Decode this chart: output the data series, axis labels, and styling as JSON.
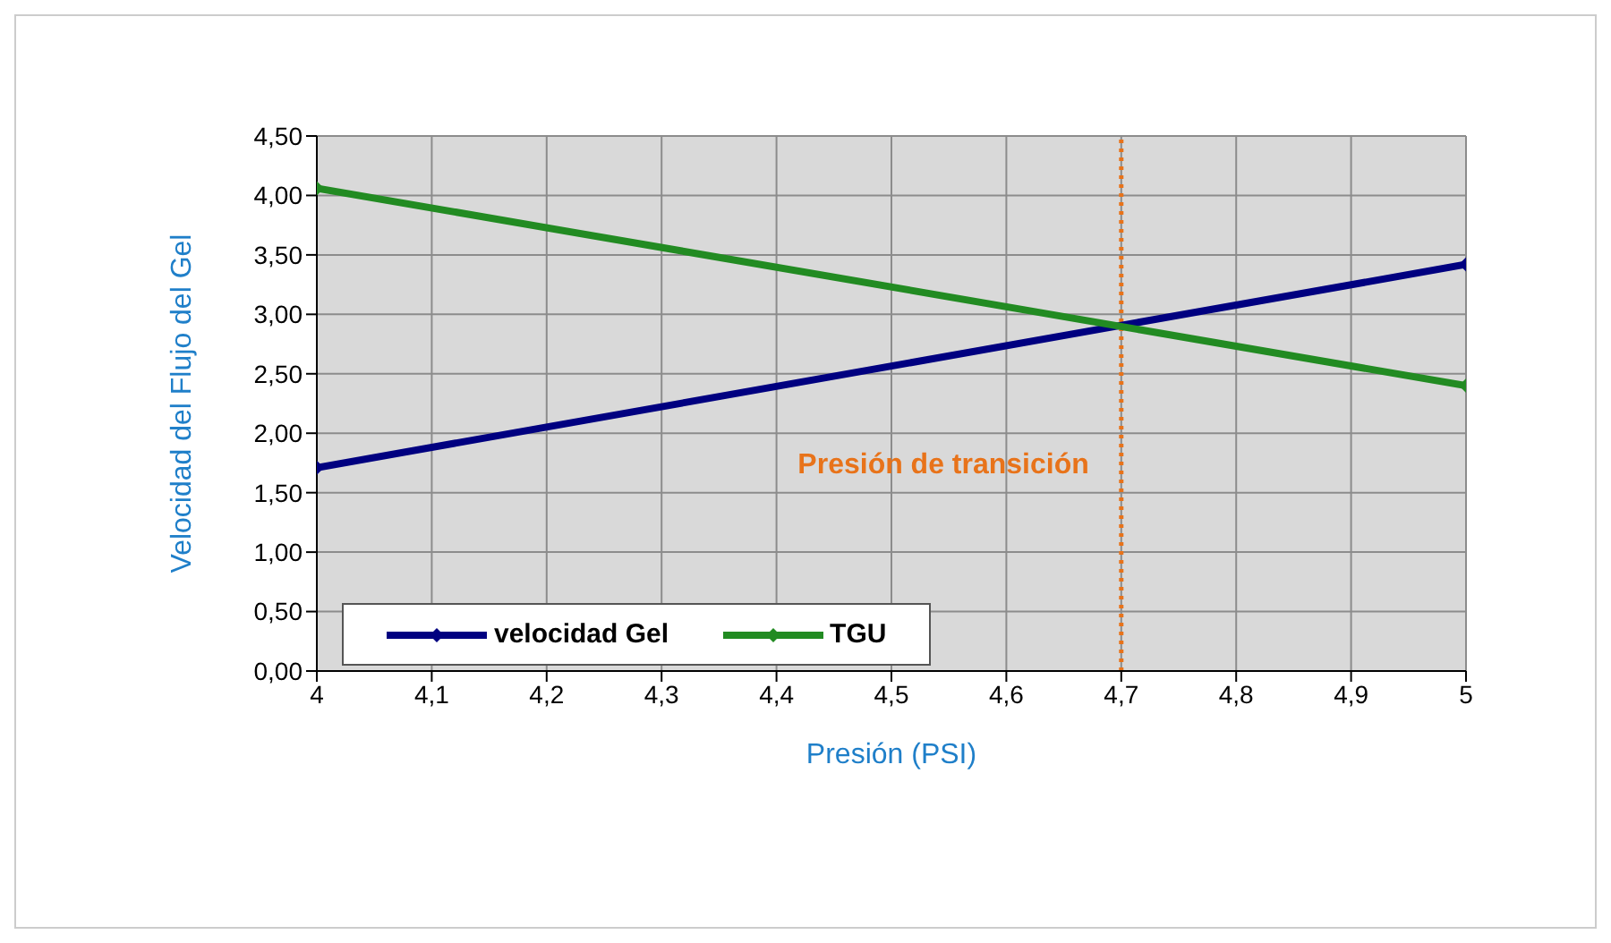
{
  "chart_data": {
    "type": "line",
    "xlabel": "Presión  (PSI)",
    "ylabel": "Velocidad  del  Flujo  del  Gel",
    "x": [
      4,
      5
    ],
    "series": [
      {
        "name": "velocidad  Gel",
        "color": "#000080",
        "values": [
          1.71,
          3.42
        ]
      },
      {
        "name": "TGU",
        "color": "#228b22",
        "values": [
          4.06,
          2.4
        ]
      }
    ],
    "xlim": [
      4,
      5
    ],
    "xticks": [
      4,
      {
        "value": 4.1,
        "label": "4,1"
      },
      {
        "value": 4.2,
        "label": "4,2"
      },
      {
        "value": 4.3,
        "label": "4,3"
      },
      {
        "value": 4.4,
        "label": "4,4"
      },
      {
        "value": 4.5,
        "label": "4,5"
      },
      {
        "value": 4.6,
        "label": "4,6"
      },
      {
        "value": 4.7,
        "label": "4,7"
      },
      {
        "value": 4.8,
        "label": "4,8"
      },
      {
        "value": 4.9,
        "label": "4,9"
      },
      5
    ],
    "ylim": [
      0,
      4.5
    ],
    "yticks": [
      {
        "value": 0,
        "label": "0,00"
      },
      {
        "value": 0.5,
        "label": "0,50"
      },
      {
        "value": 1,
        "label": "1,00"
      },
      {
        "value": 1.5,
        "label": "1,50"
      },
      {
        "value": 2,
        "label": "2,00"
      },
      {
        "value": 2.5,
        "label": "2,50"
      },
      {
        "value": 3,
        "label": "3,00"
      },
      {
        "value": 3.5,
        "label": "3,50"
      },
      {
        "value": 4,
        "label": "4,00"
      },
      {
        "value": 4.5,
        "label": "4,50"
      }
    ],
    "ref_lines": [
      {
        "axis": "x",
        "value": 4.7,
        "label": "Presión de transición",
        "color": "#e8731a",
        "line_style": "dotted"
      }
    ],
    "grid": true,
    "legend": "bottom left",
    "marker": "diamond",
    "line_style": "solid"
  }
}
